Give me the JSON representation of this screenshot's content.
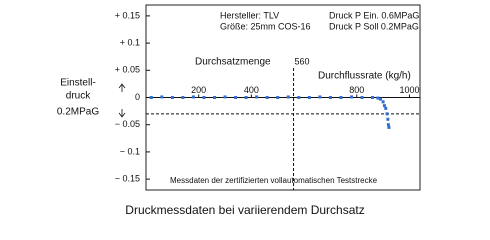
{
  "chart_data": {
    "type": "scatter",
    "caption": "Druckmessdaten bei variierendem Durchsatz",
    "annotations": [
      "Hersteller: TLV",
      "Größe: 25mm COS-16",
      "Druck P Ein. 0.6MPaG",
      "Druck P Soll 0.2MPaG",
      "Durchsatzmenge",
      "Durchflussrate (kg/h)",
      "Messdaten der zertifizierten vollautomatischen Teststrecke"
    ],
    "y_label_lines": [
      "Einstell-",
      "druck",
      "0.2MPaG"
    ],
    "reference_x": 560,
    "reference_y": -0.03,
    "xlim": [
      0,
      1040
    ],
    "xticks": [
      200,
      400,
      800,
      1000
    ],
    "ylim": [
      -0.17,
      0.17
    ],
    "yticks": [
      {
        "value": 0.15,
        "label": "+ 0.15"
      },
      {
        "value": 0.1,
        "label": "+ 0.1"
      },
      {
        "value": 0.05,
        "label": "+ 0.05"
      },
      0,
      {
        "value": -0.05,
        "label": "− 0.05"
      },
      {
        "value": -0.1,
        "label": "− 0.1"
      },
      {
        "value": -0.15,
        "label": "− 0.15"
      }
    ],
    "series": [
      {
        "color": "#2f6fd0",
        "x": [
          20,
          60,
          100,
          140,
          180,
          220,
          260,
          300,
          340,
          380,
          420,
          460,
          500,
          540,
          580,
          620,
          660,
          700,
          740,
          780,
          820,
          860,
          880,
          890,
          900,
          905,
          910,
          915,
          918,
          920,
          922
        ],
        "values": [
          0,
          0.001,
          0,
          0,
          0.001,
          0,
          0,
          0.001,
          0,
          0,
          0.001,
          0,
          0,
          0.001,
          0,
          0,
          0.001,
          0,
          0,
          0.001,
          0,
          0,
          -0.001,
          -0.003,
          -0.008,
          -0.015,
          -0.02,
          -0.03,
          -0.04,
          -0.05,
          -0.055
        ]
      }
    ]
  }
}
